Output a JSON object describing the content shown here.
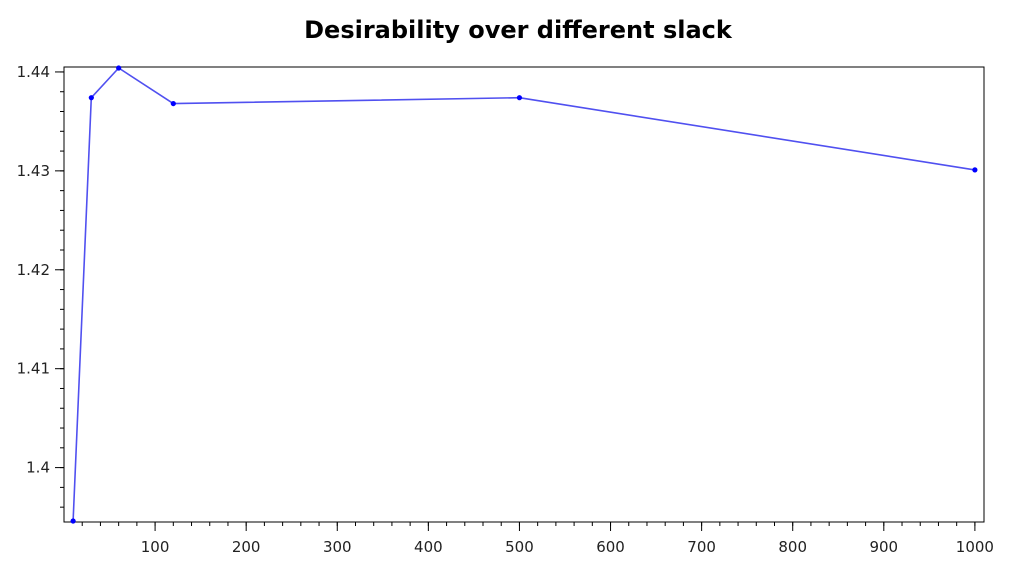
{
  "chart_data": {
    "type": "line",
    "title": "Desirability over different slack",
    "xlabel": "",
    "ylabel": "",
    "xlim": [
      0,
      1010
    ],
    "ylim": [
      1.3945,
      1.4405
    ],
    "x_ticks": [
      100,
      200,
      300,
      400,
      500,
      600,
      700,
      800,
      900,
      1000
    ],
    "x_tick_labels": [
      "100",
      "200",
      "300",
      "400",
      "500",
      "600",
      "700",
      "800",
      "900",
      "1000"
    ],
    "y_ticks": [
      1.4,
      1.41,
      1.42,
      1.43,
      1.44
    ],
    "y_tick_labels": [
      "1.4",
      "1.41",
      "1.42",
      "1.43",
      "1.44"
    ],
    "x_minor_step": 20,
    "y_minor_step": 0.002,
    "grid": false,
    "legend": "none",
    "series": [
      {
        "color": "#5050f0",
        "marker_color": "#0000ff",
        "x": [
          10,
          30,
          60,
          120,
          500,
          1000
        ],
        "y": [
          1.3946,
          1.4374,
          1.4404,
          1.4368,
          1.4374,
          1.4301
        ]
      }
    ]
  }
}
